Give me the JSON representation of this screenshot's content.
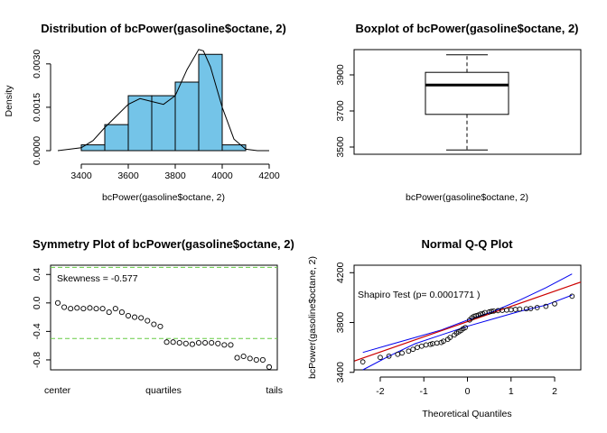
{
  "chart_data": [
    {
      "type": "bar",
      "panel": "histogram",
      "title": "Distribution of bcPower(gasoline$octane, 2)",
      "xlabel": "bcPower(gasoline$octane, 2)",
      "ylabel": "Density",
      "xlim": [
        3300,
        4200
      ],
      "ylim": [
        0,
        0.0034
      ],
      "xticks": [
        "3400",
        "3600",
        "3800",
        "4000",
        "4200"
      ],
      "yticks": [
        "0.0000",
        "0.0015",
        "0.0030"
      ],
      "bin_edges": [
        3400,
        3500,
        3600,
        3700,
        3800,
        3900,
        4000,
        4100
      ],
      "values": [
        0.0002,
        0.0009,
        0.0019,
        0.0019,
        0.00237,
        0.00333,
        0.0002
      ],
      "bar_color": "#74C4E8",
      "density_curve": {
        "x": [
          3300,
          3400,
          3450,
          3500,
          3550,
          3600,
          3650,
          3700,
          3750,
          3800,
          3850,
          3900,
          3920,
          3950,
          4000,
          4050,
          4100,
          4150,
          4200
        ],
        "y": [
          0.0,
          0.0001,
          0.00035,
          0.0008,
          0.0012,
          0.0016,
          0.0018,
          0.0017,
          0.0016,
          0.0019,
          0.0028,
          0.0035,
          0.00345,
          0.0029,
          0.0015,
          0.0004,
          5e-05,
          0.0,
          0.0
        ]
      }
    },
    {
      "type": "boxplot",
      "panel": "boxplot",
      "title": "Boxplot of bcPower(gasoline$octane, 2)",
      "xlabel": "bcPower(gasoline$octane, 2)",
      "ylim": [
        3460,
        4040
      ],
      "yticks": [
        "3500",
        "3700",
        "3900"
      ],
      "min": 3484,
      "q1": 3681,
      "median": 3844,
      "q3": 3914,
      "max": 4011
    },
    {
      "type": "scatter",
      "panel": "symmetry",
      "title": "Symmetry Plot of bcPower(gasoline$octane, 2)",
      "annotation": "Skewness = -0.577",
      "ylim": [
        -0.94,
        0.53
      ],
      "yticks": [
        "0.4",
        "0.0",
        "-0.4",
        "-0.8"
      ],
      "xtick_labels": [
        "center",
        "quartiles",
        "tails"
      ],
      "ref_lines": [
        0.5,
        -0.5
      ],
      "ref_color": "#66CC44",
      "values": [
        0.0,
        -0.06,
        -0.08,
        -0.07,
        -0.08,
        -0.07,
        -0.08,
        -0.08,
        -0.13,
        -0.08,
        -0.13,
        -0.18,
        -0.2,
        -0.21,
        -0.25,
        -0.3,
        -0.33,
        -0.55,
        -0.55,
        -0.56,
        -0.57,
        -0.58,
        -0.56,
        -0.56,
        -0.56,
        -0.57,
        -0.59,
        -0.59,
        -0.77,
        -0.75,
        -0.78,
        -0.8,
        -0.8,
        -0.9
      ]
    },
    {
      "type": "scatter",
      "panel": "qq",
      "title": "Normal Q-Q Plot",
      "xlabel": "Theoretical Quantiles",
      "ylabel": "bcPower(gasoline$octane, 2)",
      "annotation": "Shapiro Test (p= 0.0001771 )",
      "xlim": [
        -2.6,
        2.6
      ],
      "ylim": [
        3420,
        4260
      ],
      "xticks": [
        "-2",
        "-1",
        "0",
        "1",
        "2"
      ],
      "yticks": [
        "3400",
        "3800",
        "4200"
      ],
      "ref_line": {
        "x": [
          -2.6,
          2.6
        ],
        "y": [
          3490,
          4125
        ],
        "color": "#CC0000"
      },
      "bands": {
        "x": [
          -2.4,
          -1.8,
          -1.2,
          -0.6,
          0.0,
          0.6,
          1.2,
          1.8,
          2.4
        ],
        "upper": [
          3560,
          3620,
          3680,
          3740,
          3820,
          3890,
          3980,
          4080,
          4190
        ],
        "lower": [
          3420,
          3530,
          3630,
          3700,
          3770,
          3830,
          3890,
          3940,
          4020
        ],
        "color": "#0000EE"
      },
      "points": {
        "x": [
          -2.4,
          -2.0,
          -1.8,
          -1.6,
          -1.5,
          -1.35,
          -1.25,
          -1.15,
          -1.05,
          -0.95,
          -0.85,
          -0.8,
          -0.7,
          -0.6,
          -0.55,
          -0.45,
          -0.4,
          -0.3,
          -0.25,
          -0.2,
          -0.15,
          -0.1,
          -0.05,
          0.05,
          0.1,
          0.15,
          0.2,
          0.25,
          0.3,
          0.35,
          0.4,
          0.5,
          0.55,
          0.6,
          0.7,
          0.8,
          0.9,
          1.0,
          1.1,
          1.2,
          1.35,
          1.45,
          1.6,
          1.8,
          2.0,
          2.4
        ],
        "y": [
          3484,
          3520,
          3530,
          3545,
          3555,
          3570,
          3585,
          3600,
          3610,
          3620,
          3625,
          3630,
          3635,
          3640,
          3650,
          3665,
          3680,
          3700,
          3715,
          3725,
          3735,
          3750,
          3760,
          3820,
          3838,
          3850,
          3855,
          3860,
          3868,
          3872,
          3880,
          3885,
          3890,
          3892,
          3895,
          3898,
          3900,
          3902,
          3905,
          3908,
          3910,
          3912,
          3920,
          3930,
          3950,
          4011
        ]
      }
    }
  ]
}
